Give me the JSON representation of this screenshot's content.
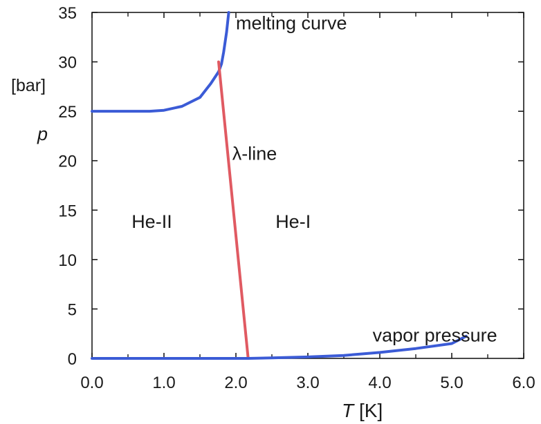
{
  "chart_data": {
    "type": "line",
    "title": "",
    "xlabel": {
      "symbol": "T",
      "unit": "[K]"
    },
    "ylabel": {
      "symbol": "p",
      "unit": "[bar]"
    },
    "xlim": [
      0,
      6
    ],
    "ylim": [
      0,
      35
    ],
    "x_ticks": [
      "0.0",
      "1.0",
      "2.0",
      "3.0",
      "4.0",
      "5.0",
      "6.0"
    ],
    "y_ticks": [
      "0",
      "5",
      "10",
      "15",
      "20",
      "25",
      "30",
      "35"
    ],
    "grid": false,
    "series": [
      {
        "color": "#3b5bd6",
        "points": [
          [
            0.0,
            25.0
          ],
          [
            0.8,
            25.0
          ],
          [
            1.0,
            25.1
          ],
          [
            1.25,
            25.5
          ],
          [
            1.5,
            26.4
          ],
          [
            1.65,
            27.8
          ],
          [
            1.76,
            29.0
          ],
          [
            1.8,
            29.8
          ],
          [
            1.83,
            31.0
          ],
          [
            1.87,
            33.0
          ],
          [
            1.9,
            35.0
          ]
        ]
      },
      {
        "color": "#e05a62",
        "points": [
          [
            1.76,
            30.0
          ],
          [
            2.17,
            0.0
          ]
        ]
      },
      {
        "color": "#3b5bd6",
        "points": [
          [
            0.0,
            0.0
          ],
          [
            2.17,
            0.0
          ],
          [
            2.5,
            0.05
          ],
          [
            3.0,
            0.15
          ],
          [
            3.5,
            0.3
          ],
          [
            4.0,
            0.6
          ],
          [
            4.5,
            1.0
          ],
          [
            5.0,
            1.5
          ],
          [
            5.2,
            2.24
          ]
        ]
      }
    ],
    "annotations": [
      {
        "id": "melting",
        "text": "melting curve",
        "x": 2.0,
        "y": 33.3
      },
      {
        "id": "lambda",
        "text": "λ-line",
        "x": 1.95,
        "y": 20.1
      },
      {
        "id": "heII",
        "text": "He-II",
        "x": 0.55,
        "y": 13.2
      },
      {
        "id": "heI",
        "text": "He-I",
        "x": 2.55,
        "y": 13.2
      },
      {
        "id": "vapor",
        "text": "vapor pressure",
        "x": 3.9,
        "y": 1.7
      }
    ]
  }
}
